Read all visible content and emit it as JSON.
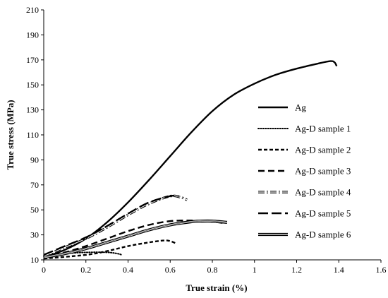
{
  "chart_data": {
    "type": "line",
    "xlabel": "True strain (%)",
    "ylabel": "True stress (MPa)",
    "xlim": [
      0,
      1.6
    ],
    "ylim": [
      10,
      210
    ],
    "xticks": [
      "0",
      "0.2",
      "0.4",
      "0.6",
      "0.8",
      "1",
      "1.2",
      "1.4",
      "1.6"
    ],
    "yticks": [
      "10",
      "30",
      "50",
      "70",
      "90",
      "110",
      "130",
      "150",
      "170",
      "190",
      "210"
    ],
    "grid": false,
    "legend_position": "right",
    "series": [
      {
        "name": "Ag",
        "style": "solid",
        "x": [
          0,
          0.1,
          0.2,
          0.3,
          0.4,
          0.5,
          0.6,
          0.7,
          0.8,
          0.9,
          1.0,
          1.1,
          1.2,
          1.3,
          1.36,
          1.38,
          1.39
        ],
        "y": [
          12,
          18,
          27,
          40,
          56,
          74,
          93,
          112,
          129,
          142,
          151,
          158,
          163,
          167,
          169,
          168,
          165
        ]
      },
      {
        "name": "Ag-D sample 1",
        "style": "dotted",
        "x": [
          0,
          0.1,
          0.2,
          0.3,
          0.35,
          0.37
        ],
        "y": [
          13,
          15,
          16,
          16,
          15,
          14
        ]
      },
      {
        "name": "Ag-D sample 2",
        "style": "short-dash",
        "x": [
          0,
          0.2,
          0.3,
          0.4,
          0.5,
          0.57,
          0.6,
          0.63
        ],
        "y": [
          11,
          14,
          17,
          21,
          24,
          25.5,
          25,
          23
        ]
      },
      {
        "name": "Ag-D sample 3",
        "style": "dash",
        "x": [
          0,
          0.1,
          0.2,
          0.3,
          0.4,
          0.5,
          0.6,
          0.7,
          0.8,
          0.85
        ],
        "y": [
          12,
          16,
          21,
          27,
          33,
          38,
          41,
          41.5,
          40.5,
          39.5
        ]
      },
      {
        "name": "Ag-D sample 4",
        "style": "dash-dot-hollow",
        "x": [
          0,
          0.1,
          0.2,
          0.3,
          0.4,
          0.5,
          0.6,
          0.65,
          0.68
        ],
        "y": [
          13,
          20,
          27,
          36,
          46,
          55,
          61,
          60,
          58
        ]
      },
      {
        "name": "Ag-D sample 5",
        "style": "long-dash",
        "x": [
          0,
          0.1,
          0.2,
          0.3,
          0.4,
          0.5,
          0.6,
          0.64
        ],
        "y": [
          14,
          21,
          28,
          37,
          47,
          56,
          61,
          61
        ]
      },
      {
        "name": "Ag-D sample 6",
        "style": "double-hollow",
        "x": [
          0,
          0.1,
          0.2,
          0.3,
          0.4,
          0.5,
          0.6,
          0.7,
          0.75,
          0.8,
          0.87
        ],
        "y": [
          12,
          15,
          19,
          24,
          29,
          34,
          38,
          40.5,
          41,
          41,
          40
        ]
      }
    ]
  }
}
